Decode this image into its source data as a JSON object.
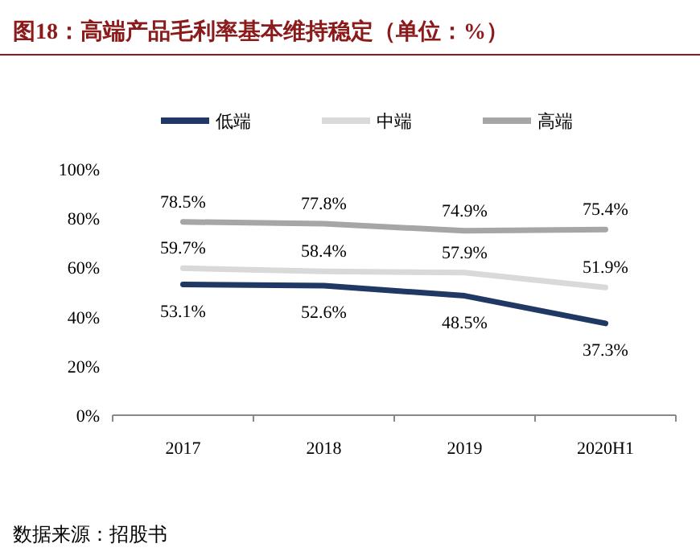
{
  "chart_data": {
    "type": "line",
    "title": "图18：高端产品毛利率基本维持稳定（单位：%）",
    "categories": [
      "2017",
      "2018",
      "2019",
      "2020H1"
    ],
    "series": [
      {
        "name": "低端",
        "color": "#1f3864",
        "values": [
          53.1,
          52.6,
          48.5,
          37.3
        ],
        "value_labels": [
          "53.1%",
          "52.6%",
          "48.5%",
          "37.3%"
        ]
      },
      {
        "name": "中端",
        "color": "#d9d9d9",
        "values": [
          59.7,
          58.4,
          57.9,
          51.9
        ],
        "value_labels": [
          "59.7%",
          "58.4%",
          "57.9%",
          "51.9%"
        ]
      },
      {
        "name": "高端",
        "color": "#a6a6a6",
        "values": [
          78.5,
          77.8,
          74.9,
          75.4
        ],
        "value_labels": [
          "78.5%",
          "77.8%",
          "74.9%",
          "75.4%"
        ]
      }
    ],
    "ylim": [
      0,
      100
    ],
    "yticks": [
      {
        "value": 0,
        "label": "0%"
      },
      {
        "value": 20,
        "label": "20%"
      },
      {
        "value": 40,
        "label": "40%"
      },
      {
        "value": 60,
        "label": "60%"
      },
      {
        "value": 80,
        "label": "80%"
      },
      {
        "value": 100,
        "label": "100%"
      }
    ],
    "legend": "top",
    "marker": "none",
    "line_style": "solid",
    "annotations": [
      "数据来源：招股书"
    ]
  }
}
